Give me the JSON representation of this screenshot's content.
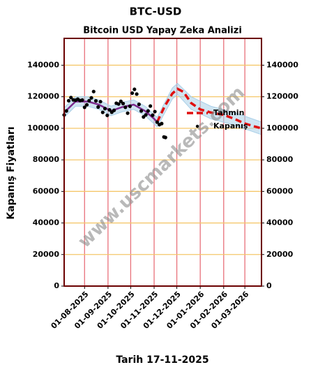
{
  "chart_data": {
    "type": "scatter-forecast",
    "title": "BTC-USD",
    "subtitle": "Bitcoin USD Yapay Zeka Analizi",
    "x_label": "Tarih 17-11-2025",
    "y_label": "Kapanış Fiyatları",
    "watermark": "www.uscmarkets.com",
    "xlim": [
      "2025-07-05",
      "2026-03-23"
    ],
    "ylim": [
      0,
      157000
    ],
    "xticks": [
      {
        "value": "2025-08-01",
        "label": "01-08-2025"
      },
      {
        "value": "2025-09-01",
        "label": "01-09-2025"
      },
      {
        "value": "2025-10-01",
        "label": "01-10-2025"
      },
      {
        "value": "2025-11-01",
        "label": "01-11-2025"
      },
      {
        "value": "2025-12-01",
        "label": "01-12-2025"
      },
      {
        "value": "2026-01-01",
        "label": "01-01-2026"
      },
      {
        "value": "2026-02-01",
        "label": "01-02-2026"
      },
      {
        "value": "2026-03-01",
        "label": "01-03-2026"
      }
    ],
    "yticks": [
      0,
      20000,
      40000,
      60000,
      80000,
      100000,
      120000,
      140000
    ],
    "grid": true,
    "legend": "center right",
    "xgrid_color": "#e8707a",
    "ygrid_color": "#f5c76a",
    "frame_color": "#6b0000",
    "series": [
      {
        "name": "Tahmin",
        "color": "#e01010",
        "style": "dashed",
        "x": [
          "2025-11-05",
          "2025-11-15",
          "2025-11-25",
          "2025-12-02",
          "2025-12-10",
          "2025-12-20",
          "2026-01-01",
          "2026-01-15",
          "2026-02-01",
          "2026-02-15",
          "2026-03-01",
          "2026-03-15",
          "2026-03-23"
        ],
        "values": [
          104000,
          114000,
          122000,
          125000,
          123000,
          116000,
          112000,
          110000,
          108500,
          106000,
          103000,
          101000,
          100000
        ]
      },
      {
        "name": "Kapanış",
        "color": "#000000",
        "style": "dots",
        "x": [
          "2025-07-05",
          "2025-07-08",
          "2025-07-11",
          "2025-07-14",
          "2025-07-17",
          "2025-07-20",
          "2025-07-23",
          "2025-07-26",
          "2025-07-29",
          "2025-08-01",
          "2025-08-04",
          "2025-08-07",
          "2025-08-10",
          "2025-08-13",
          "2025-08-16",
          "2025-08-19",
          "2025-08-22",
          "2025-08-25",
          "2025-08-28",
          "2025-08-31",
          "2025-09-03",
          "2025-09-06",
          "2025-09-09",
          "2025-09-12",
          "2025-09-15",
          "2025-09-18",
          "2025-09-21",
          "2025-09-24",
          "2025-09-27",
          "2025-09-30",
          "2025-10-03",
          "2025-10-06",
          "2025-10-09",
          "2025-10-12",
          "2025-10-15",
          "2025-10-18",
          "2025-10-21",
          "2025-10-24",
          "2025-10-27",
          "2025-10-30",
          "2025-11-02",
          "2025-11-05",
          "2025-11-08",
          "2025-11-11",
          "2025-11-14",
          "2025-11-16"
        ],
        "values": [
          108500,
          111000,
          117500,
          119500,
          118000,
          117800,
          118500,
          117600,
          117900,
          113300,
          114900,
          117500,
          119300,
          123300,
          117400,
          113500,
          116900,
          110100,
          112500,
          108200,
          111700,
          110200,
          111400,
          115900,
          115400,
          117100,
          115700,
          113300,
          109600,
          114000,
          122300,
          124700,
          121700,
          115200,
          111000,
          107200,
          108500,
          111000,
          114100,
          108300,
          110600,
          103900,
          102300,
          103000,
          94500,
          94200
        ]
      }
    ],
    "fit": {
      "color": "#7b2a8c",
      "x": [
        "2025-07-05",
        "2025-07-20",
        "2025-08-05",
        "2025-08-20",
        "2025-09-05",
        "2025-09-20",
        "2025-10-05",
        "2025-10-20",
        "2025-11-01",
        "2025-11-05"
      ],
      "values": [
        110000,
        117000,
        117000,
        115000,
        111000,
        113500,
        115000,
        111000,
        106000,
        104000
      ]
    },
    "band": {
      "color": "#a9cfe8",
      "x": [
        "2025-07-05",
        "2025-07-20",
        "2025-08-05",
        "2025-08-20",
        "2025-09-05",
        "2025-09-20",
        "2025-10-05",
        "2025-10-20",
        "2025-11-05",
        "2025-11-25",
        "2025-12-02",
        "2025-12-20",
        "2026-01-15",
        "2026-02-15",
        "2026-03-23"
      ],
      "upper": [
        113000,
        120000,
        120000,
        118000,
        114000,
        116500,
        118000,
        114000,
        107000,
        125500,
        128500,
        120000,
        114000,
        110000,
        104000
      ],
      "lower": [
        107000,
        114000,
        114000,
        112000,
        108000,
        110500,
        112000,
        108000,
        101000,
        118500,
        121500,
        112000,
        106000,
        102000,
        96000
      ]
    }
  }
}
